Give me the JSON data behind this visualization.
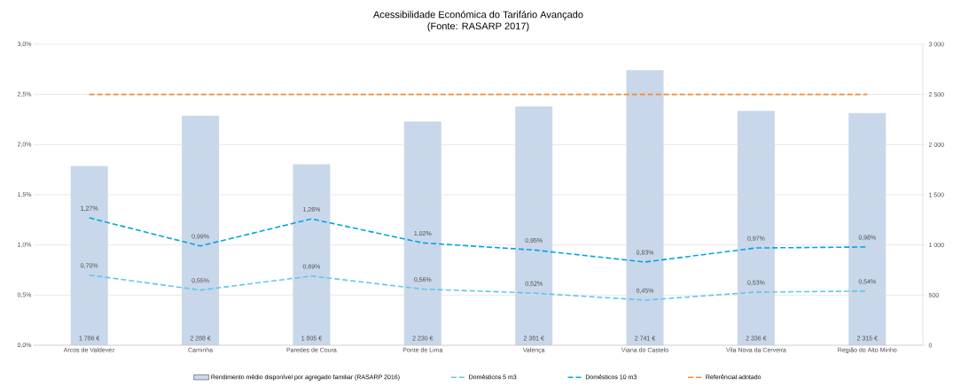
{
  "chart_data": {
    "type": "line",
    "title": "Acessibilidade Económica do Tarifário Avançado",
    "subtitle": "(Fonte: RASARP 2017)",
    "categories": [
      "Arcos de Valdevez",
      "Caminha",
      "Paredes de Coura",
      "Ponte de Lima",
      "Valença",
      "Viana do Castelo",
      "Vila Nova da Cerveira",
      "Região do Alto Minho"
    ],
    "series": [
      {
        "name": "Rendimento médio disponível por agregado familiar (RASARP 2016)",
        "type": "bar",
        "axis": "y2",
        "color": "#c9d7ea",
        "values": [
          1786,
          2288,
          1805,
          2230,
          2381,
          2741,
          2336,
          2315
        ],
        "value_labels": [
          "1 786 €",
          "2 288 €",
          "1 805 €",
          "2 230 €",
          "2 381 €",
          "2 741 €",
          "2 336 €",
          "2 315 €"
        ]
      },
      {
        "name": "Domésticos 5 m3",
        "line_style": "dashed",
        "color": "#62c6ee",
        "values": [
          0.7,
          0.55,
          0.69,
          0.56,
          0.52,
          0.45,
          0.53,
          0.54
        ],
        "value_labels": [
          "0,70%",
          "0,55%",
          "0,69%",
          "0,56%",
          "0,52%",
          "0,45%",
          "0,53%",
          "0,54%"
        ]
      },
      {
        "name": "Domésticos 10 m3",
        "line_style": "dashed",
        "color": "#00a5e3",
        "values": [
          1.27,
          0.99,
          1.26,
          1.02,
          0.95,
          0.83,
          0.97,
          0.98
        ],
        "value_labels": [
          "1,27%",
          "0,99%",
          "1,26%",
          "1,02%",
          "0,95%",
          "0,83%",
          "0,97%",
          "0,98%"
        ]
      },
      {
        "name": "Referêncial adotado",
        "line_style": "dashed",
        "color": "#f28a36",
        "values": [
          2.5,
          2.5,
          2.5,
          2.5,
          2.5,
          2.5,
          2.5,
          2.5
        ]
      }
    ],
    "ylim": [
      0,
      3
    ],
    "yticks": [
      {
        "value": 0,
        "label": "0,0%"
      },
      {
        "value": 0.5,
        "label": "0,5%"
      },
      {
        "value": 1,
        "label": "1,0%"
      },
      {
        "value": 1.5,
        "label": "1,5%"
      },
      {
        "value": 2,
        "label": "2,0%"
      },
      {
        "value": 2.5,
        "label": "2,5%"
      },
      {
        "value": 3,
        "label": "3,0%"
      }
    ],
    "y2lim": [
      0,
      3000
    ],
    "y2ticks": [
      0,
      500,
      {
        "value": 1000,
        "label": "1 000"
      },
      {
        "value": 1500,
        "label": "1 500"
      },
      {
        "value": 2000,
        "label": "2 000"
      },
      {
        "value": 2500,
        "label": "2 500"
      },
      {
        "value": 3000,
        "label": "3 000"
      }
    ],
    "grid": "y",
    "legend": "bottom",
    "marker": "none"
  }
}
